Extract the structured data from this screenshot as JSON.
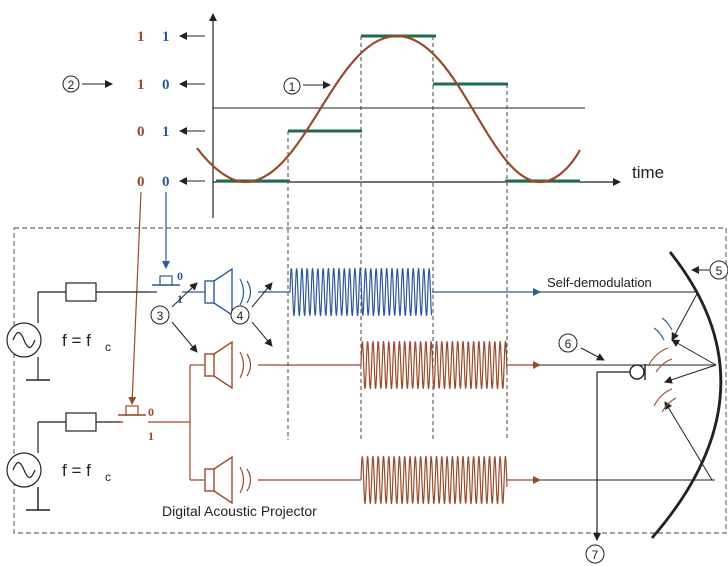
{
  "labels": {
    "time": "time",
    "self_demodulation": "Self-demodulation",
    "projector": "Digital Acoustic Projector",
    "freq_main": "f = f",
    "freq_sub": "c"
  },
  "markers": [
    "①",
    "②",
    "③",
    "④",
    "⑤",
    "⑥",
    "⑦"
  ],
  "bits": {
    "brown_column": [
      "1",
      "1",
      "0",
      "0"
    ],
    "blue_column": [
      "1",
      "0",
      "1",
      "0"
    ],
    "switch_top_0": "0",
    "switch_top_1": "1",
    "switch_bottom_0": "0",
    "switch_bottom_1": "1"
  },
  "colors": {
    "blue": "#2e5a94",
    "brown": "#9a4a2a",
    "green": "#1f6b4f",
    "dark": "#222222"
  }
}
